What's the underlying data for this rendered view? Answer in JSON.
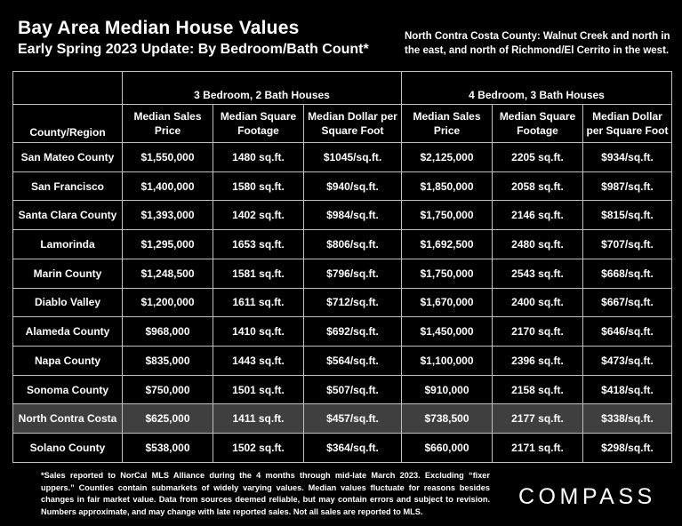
{
  "header": {
    "title": "Bay Area Median House Values",
    "subtitle": "Early Spring 2023 Update:  By Bedroom/Bath Count*",
    "note": "North Contra Costa County: Walnut Creek and north in the east, and north of Richmond/El Cerrito in the west."
  },
  "table": {
    "region_header": "County/Region",
    "group1": "3 Bedroom, 2 Bath Houses",
    "group2": "4 Bedroom, 3 Bath Houses",
    "col_price": "Median Sales Price",
    "col_sqft": "Median Square Footage",
    "col_ppsf": "Median Dollar per Square Foot",
    "highlight_row": "North Contra Costa",
    "highlight_color": "#3f3f3f",
    "rows": [
      [
        "San Mateo County",
        "$1,550,000",
        "1480 sq.ft.",
        "$1045/sq.ft.",
        "$2,125,000",
        "2205 sq.ft.",
        "$934/sq.ft."
      ],
      [
        "San Francisco",
        "$1,400,000",
        "1580 sq.ft.",
        "$940/sq.ft.",
        "$1,850,000",
        "2058 sq.ft.",
        "$987/sq.ft."
      ],
      [
        "Santa Clara County",
        "$1,393,000",
        "1402 sq.ft.",
        "$984/sq.ft.",
        "$1,750,000",
        "2146 sq.ft.",
        "$815/sq.ft."
      ],
      [
        "Lamorinda",
        "$1,295,000",
        "1653 sq.ft.",
        "$806/sq.ft.",
        "$1,692,500",
        "2480 sq.ft.",
        "$707/sq.ft."
      ],
      [
        "Marin County",
        "$1,248,500",
        "1581 sq.ft.",
        "$796/sq.ft.",
        "$1,750,000",
        "2543 sq.ft.",
        "$668/sq.ft."
      ],
      [
        "Diablo Valley",
        "$1,200,000",
        "1611 sq.ft.",
        "$712/sq.ft.",
        "$1,670,000",
        "2400 sq.ft.",
        "$667/sq.ft."
      ],
      [
        "Alameda County",
        "$968,000",
        "1410 sq.ft.",
        "$692/sq.ft.",
        "$1,450,000",
        "2170 sq.ft.",
        "$646/sq.ft."
      ],
      [
        "Napa County",
        "$835,000",
        "1443 sq.ft.",
        "$564/sq.ft.",
        "$1,100,000",
        "2396 sq.ft.",
        "$473/sq.ft."
      ],
      [
        "Sonoma County",
        "$750,000",
        "1501 sq.ft.",
        "$507/sq.ft.",
        "$910,000",
        "2158 sq.ft.",
        "$418/sq.ft."
      ],
      [
        "North Contra Costa",
        "$625,000",
        "1411 sq.ft.",
        "$457/sq.ft.",
        "$738,500",
        "2177 sq.ft.",
        "$338/sq.ft."
      ],
      [
        "Solano County",
        "$538,000",
        "1502 sq.ft.",
        "$364/sq.ft.",
        "$660,000",
        "2171 sq.ft.",
        "$298/sq.ft."
      ]
    ]
  },
  "footnote": "*Sales reported to NorCal MLS Alliance during the 4 months through mid-late March 2023. Excluding “fixer uppers.” Counties contain submarkets of widely varying values. Median values fluctuate for reasons besides changes in fair market value. Data from sources deemed reliable, but may contain errors and subject to revision.  Numbers approximate, and may change with late reported sales. Not all sales are reported to MLS.",
  "logo": "COMPASS"
}
